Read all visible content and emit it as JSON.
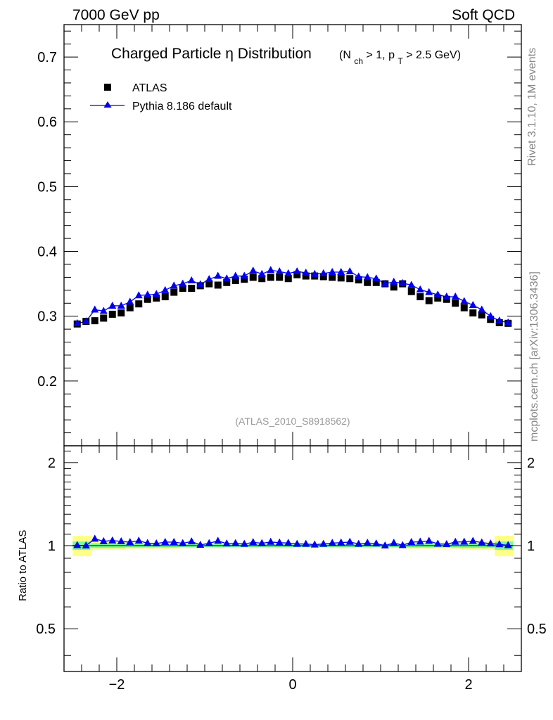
{
  "header": {
    "energy_label": "7000 GeV pp",
    "category_label": "Soft QCD"
  },
  "side_labels": {
    "rivet": "Rivet 3.1.10,  1M events",
    "source": "mcplots.cern.ch [arXiv:1306.3436]"
  },
  "colors": {
    "mc": "#0000ee",
    "data": "#000000",
    "band_inner": "#7dfa98",
    "band_outer": "#ffff88",
    "ref_line": "#00a000",
    "analysis_tag": "#999999"
  },
  "chart_data": [
    {
      "type": "scatter",
      "title": "Charged Particle",
      "title_symbol": "η",
      "title_rest": "Distribution",
      "title_cuts": {
        "open": "(N",
        "sub1": "ch",
        "mid": " > 1, p",
        "sub2": "T",
        "close": " > 2.5 GeV)"
      },
      "analysis_tag": "(ATLAS_2010_S8918562)",
      "xlim": [
        -2.6,
        2.6
      ],
      "ylim": [
        0.1,
        0.75
      ],
      "xticks": [
        -2,
        0,
        2
      ],
      "xtick_labels": [
        "−2",
        "0",
        "2"
      ],
      "yticks": [
        0.2,
        0.3,
        0.4,
        0.5,
        0.6,
        0.7
      ],
      "ytick_labels": [
        "0.2",
        "0.3",
        "0.4",
        "0.5",
        "0.6",
        "0.7"
      ],
      "legend_position": "top-left",
      "x": [
        -2.45,
        -2.35,
        -2.25,
        -2.15,
        -2.05,
        -1.95,
        -1.85,
        -1.75,
        -1.65,
        -1.55,
        -1.45,
        -1.35,
        -1.25,
        -1.15,
        -1.05,
        -0.95,
        -0.85,
        -0.75,
        -0.65,
        -0.55,
        -0.45,
        -0.35,
        -0.25,
        -0.15,
        -0.05,
        0.05,
        0.15,
        0.25,
        0.35,
        0.45,
        0.55,
        0.65,
        0.75,
        0.85,
        0.95,
        1.05,
        1.15,
        1.25,
        1.35,
        1.45,
        1.55,
        1.65,
        1.75,
        1.85,
        1.95,
        2.05,
        2.15,
        2.25,
        2.35,
        2.45
      ],
      "series": [
        {
          "name": "ATLAS",
          "marker": "square",
          "values": [
            0.288,
            0.292,
            0.293,
            0.297,
            0.303,
            0.305,
            0.313,
            0.319,
            0.326,
            0.328,
            0.33,
            0.337,
            0.343,
            0.343,
            0.347,
            0.35,
            0.348,
            0.352,
            0.355,
            0.357,
            0.36,
            0.358,
            0.36,
            0.36,
            0.358,
            0.364,
            0.362,
            0.362,
            0.361,
            0.36,
            0.359,
            0.358,
            0.356,
            0.352,
            0.352,
            0.35,
            0.345,
            0.35,
            0.338,
            0.33,
            0.324,
            0.328,
            0.326,
            0.32,
            0.313,
            0.305,
            0.302,
            0.295,
            0.29,
            0.289
          ]
        },
        {
          "name": "Pythia 8.186 default",
          "marker": "triangle",
          "values": [
            0.289,
            0.292,
            0.31,
            0.308,
            0.316,
            0.316,
            0.322,
            0.332,
            0.333,
            0.334,
            0.34,
            0.347,
            0.35,
            0.355,
            0.349,
            0.357,
            0.362,
            0.358,
            0.362,
            0.362,
            0.37,
            0.365,
            0.371,
            0.369,
            0.366,
            0.369,
            0.367,
            0.365,
            0.366,
            0.368,
            0.368,
            0.369,
            0.361,
            0.36,
            0.358,
            0.35,
            0.353,
            0.351,
            0.348,
            0.341,
            0.337,
            0.333,
            0.33,
            0.33,
            0.323,
            0.317,
            0.31,
            0.3,
            0.293,
            0.29
          ]
        }
      ]
    },
    {
      "type": "scatter",
      "title": "Ratio to ATLAS",
      "ylabel": "Ratio to ATLAS",
      "xlim": [
        -2.6,
        2.6
      ],
      "ylim": [
        0.35,
        2.3
      ],
      "xticks": [
        -2,
        0,
        2
      ],
      "xtick_labels": [
        "−2",
        "0",
        "2"
      ],
      "yticks": [
        0.5,
        1,
        2
      ],
      "ytick_labels": [
        "0.5",
        "1",
        "2"
      ],
      "reference_value": 1,
      "band_inner_halfwidth": [
        0.035,
        0.035,
        0.02,
        0.02,
        0.02,
        0.02,
        0.015,
        0.015,
        0.015,
        0.015,
        0.015,
        0.015,
        0.012,
        0.012,
        0.012,
        0.012,
        0.012,
        0.012,
        0.012,
        0.012,
        0.012,
        0.012,
        0.012,
        0.012,
        0.012,
        0.012,
        0.012,
        0.012,
        0.012,
        0.012,
        0.012,
        0.012,
        0.012,
        0.012,
        0.012,
        0.012,
        0.012,
        0.012,
        0.015,
        0.015,
        0.015,
        0.015,
        0.015,
        0.015,
        0.02,
        0.02,
        0.02,
        0.02,
        0.035,
        0.035
      ],
      "band_outer_halfwidth": [
        0.085,
        0.085,
        0.035,
        0.035,
        0.035,
        0.035,
        0.025,
        0.025,
        0.025,
        0.025,
        0.025,
        0.025,
        0.02,
        0.02,
        0.02,
        0.02,
        0.02,
        0.02,
        0.02,
        0.02,
        0.02,
        0.02,
        0.02,
        0.02,
        0.02,
        0.02,
        0.02,
        0.02,
        0.02,
        0.02,
        0.02,
        0.02,
        0.02,
        0.02,
        0.02,
        0.02,
        0.02,
        0.02,
        0.025,
        0.025,
        0.025,
        0.025,
        0.025,
        0.025,
        0.035,
        0.035,
        0.035,
        0.035,
        0.085,
        0.085
      ],
      "series": [
        {
          "name": "Pythia 8.186 default / ATLAS",
          "marker": "triangle",
          "values": [
            1.003,
            1.0,
            1.058,
            1.037,
            1.043,
            1.036,
            1.029,
            1.041,
            1.021,
            1.018,
            1.03,
            1.03,
            1.02,
            1.035,
            1.006,
            1.02,
            1.04,
            1.017,
            1.02,
            1.014,
            1.028,
            1.02,
            1.031,
            1.025,
            1.022,
            1.014,
            1.014,
            1.008,
            1.014,
            1.022,
            1.025,
            1.031,
            1.014,
            1.023,
            1.017,
            1.0,
            1.023,
            1.003,
            1.03,
            1.033,
            1.04,
            1.015,
            1.012,
            1.031,
            1.032,
            1.039,
            1.026,
            1.017,
            1.01,
            1.003
          ]
        }
      ]
    }
  ]
}
